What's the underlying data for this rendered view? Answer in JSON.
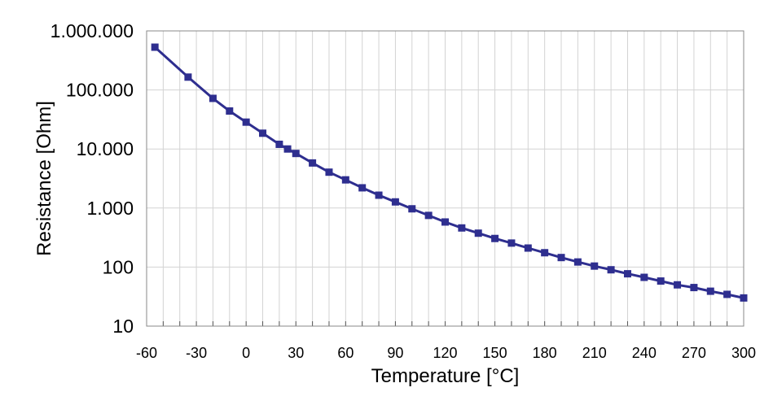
{
  "chart_data": {
    "type": "line",
    "xlabel": "Temperature [°C]",
    "ylabel": "Resistance [Ohm]",
    "xlim": [
      -60,
      300
    ],
    "ylim": [
      10,
      1000000
    ],
    "y_scale": "log",
    "grid": true,
    "x_ticks": [
      -60,
      -30,
      0,
      30,
      60,
      90,
      120,
      150,
      180,
      210,
      240,
      270,
      300
    ],
    "x_tick_labels": [
      "-60",
      "-30",
      "0",
      "30",
      "60",
      "90",
      "120",
      "150",
      "180",
      "210",
      "240",
      "270",
      "300"
    ],
    "y_ticks": [
      10,
      100,
      1000,
      10000,
      100000,
      1000000
    ],
    "y_tick_labels": [
      "10",
      "100",
      "1.000",
      "10.000",
      "100.000",
      "1.000.000"
    ],
    "colors": {
      "series": "#2e2e8f",
      "grid": "#d3d3d3",
      "frame": "#888888"
    },
    "series": [
      {
        "x": [
          -55,
          -35,
          -20,
          -10,
          0,
          10,
          20,
          25,
          30,
          40,
          50,
          60,
          70,
          80,
          90,
          100,
          110,
          120,
          130,
          140,
          150,
          160,
          170,
          180,
          190,
          200,
          210,
          220,
          230,
          240,
          250,
          260,
          270,
          280,
          290,
          300
        ],
        "y": [
          530000,
          165000,
          72000,
          44000,
          28500,
          18500,
          12000,
          10000,
          8400,
          5800,
          4050,
          3000,
          2200,
          1650,
          1270,
          970,
          750,
          580,
          460,
          375,
          305,
          255,
          210,
          175,
          145,
          122,
          104,
          90,
          77,
          67,
          58,
          50,
          45,
          39,
          34.5,
          30
        ]
      }
    ]
  }
}
